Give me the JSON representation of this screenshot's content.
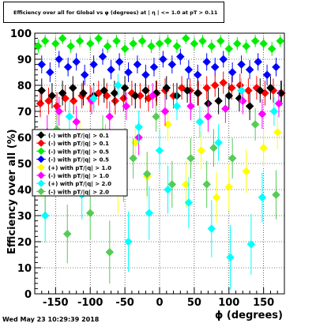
{
  "title": "Efficiency over all for Global vs φ (degrees) at | η | <= 1.0 at pT > 0.11",
  "timestamp": "Wed May 23 10:29:39 2018",
  "chart_data": {
    "type": "scatter",
    "xlabel": "ϕ (degrees)",
    "ylabel": "Efficiency over all (%)",
    "xlim": [
      -180,
      180
    ],
    "ylim": [
      0,
      100
    ],
    "xticks": [
      -150,
      -100,
      -50,
      0,
      50,
      100,
      150
    ],
    "yticks": [
      0,
      10,
      20,
      30,
      40,
      50,
      60,
      70,
      80,
      90,
      100
    ],
    "grid": true,
    "legend_position": "center-left",
    "series": [
      {
        "name": "(-) with pT/|q| > 0.1",
        "color": "#000000",
        "marker": "diamond",
        "points": [
          [
            -170,
            78
          ],
          [
            -155,
            76
          ],
          [
            -140,
            77
          ],
          [
            -125,
            79
          ],
          [
            -110,
            77
          ],
          [
            -95,
            76
          ],
          [
            -80,
            78
          ],
          [
            -65,
            77
          ],
          [
            -50,
            79
          ],
          [
            -35,
            76
          ],
          [
            -20,
            78
          ],
          [
            -5,
            77
          ],
          [
            10,
            79
          ],
          [
            25,
            76
          ],
          [
            40,
            78
          ],
          [
            55,
            77
          ],
          [
            70,
            73
          ],
          [
            85,
            74
          ],
          [
            100,
            76
          ],
          [
            115,
            75
          ],
          [
            130,
            72
          ],
          [
            145,
            78
          ],
          [
            160,
            79
          ],
          [
            175,
            77
          ]
        ]
      },
      {
        "name": "(-) with pT/|q| > 0.1",
        "color": "#ff0000",
        "marker": "diamond",
        "points": [
          [
            -172,
            73
          ],
          [
            -160,
            74
          ],
          [
            -148,
            72
          ],
          [
            -136,
            75
          ],
          [
            -124,
            74
          ],
          [
            -112,
            76
          ],
          [
            -100,
            75
          ],
          [
            -88,
            77
          ],
          [
            -76,
            76
          ],
          [
            -64,
            74
          ],
          [
            -52,
            75
          ],
          [
            -40,
            77
          ],
          [
            -28,
            76
          ],
          [
            -16,
            75
          ],
          [
            -4,
            77
          ],
          [
            8,
            78
          ],
          [
            20,
            76
          ],
          [
            32,
            79
          ],
          [
            44,
            78
          ],
          [
            56,
            77
          ],
          [
            68,
            79
          ],
          [
            80,
            80
          ],
          [
            92,
            81
          ],
          [
            104,
            79
          ],
          [
            116,
            80
          ],
          [
            128,
            78
          ],
          [
            140,
            79
          ],
          [
            152,
            77
          ],
          [
            164,
            78
          ],
          [
            176,
            77
          ]
        ]
      },
      {
        "name": "(-) with pT/|q| > 0.5",
        "color": "#00ee00",
        "marker": "diamond",
        "points": [
          [
            -175,
            95
          ],
          [
            -165,
            97
          ],
          [
            -150,
            96
          ],
          [
            -140,
            98
          ],
          [
            -128,
            95
          ],
          [
            -115,
            97
          ],
          [
            -100,
            96
          ],
          [
            -88,
            98
          ],
          [
            -75,
            95
          ],
          [
            -62,
            97
          ],
          [
            -50,
            94
          ],
          [
            -38,
            96
          ],
          [
            -25,
            97
          ],
          [
            -12,
            95
          ],
          [
            0,
            96
          ],
          [
            12,
            97
          ],
          [
            25,
            95
          ],
          [
            38,
            98
          ],
          [
            50,
            96
          ],
          [
            62,
            97
          ],
          [
            75,
            95
          ],
          [
            88,
            97
          ],
          [
            100,
            94
          ],
          [
            112,
            96
          ],
          [
            125,
            95
          ],
          [
            138,
            97
          ],
          [
            150,
            96
          ],
          [
            162,
            94
          ],
          [
            174,
            97
          ]
        ]
      },
      {
        "name": "(-) with pT/|q| > 0.5",
        "color": "#0000ff",
        "marker": "diamond",
        "points": [
          [
            -170,
            88
          ],
          [
            -158,
            85
          ],
          [
            -145,
            90
          ],
          [
            -132,
            87
          ],
          [
            -120,
            89
          ],
          [
            -108,
            84
          ],
          [
            -95,
            88
          ],
          [
            -82,
            91
          ],
          [
            -70,
            86
          ],
          [
            -58,
            89
          ],
          [
            -45,
            85
          ],
          [
            -32,
            88
          ],
          [
            -20,
            84
          ],
          [
            -8,
            87
          ],
          [
            5,
            90
          ],
          [
            18,
            88
          ],
          [
            30,
            91
          ],
          [
            42,
            86
          ],
          [
            55,
            84
          ],
          [
            68,
            89
          ],
          [
            80,
            87
          ],
          [
            92,
            90
          ],
          [
            105,
            85
          ],
          [
            118,
            88
          ],
          [
            130,
            86
          ],
          [
            142,
            89
          ],
          [
            155,
            84
          ],
          [
            168,
            87
          ]
        ]
      },
      {
        "name": "(+) with pT/|q| > 1.0",
        "color": "#ffff00",
        "marker": "diamond",
        "points": [
          [
            -168,
            45
          ],
          [
            -140,
            52
          ],
          [
            -115,
            60
          ],
          [
            -90,
            48
          ],
          [
            -60,
            40
          ],
          [
            -35,
            58
          ],
          [
            -18,
            45
          ],
          [
            12,
            65
          ],
          [
            38,
            42
          ],
          [
            60,
            55
          ],
          [
            82,
            37
          ],
          [
            100,
            41
          ],
          [
            125,
            47
          ],
          [
            150,
            56
          ],
          [
            170,
            62
          ]
        ]
      },
      {
        "name": "(-) with pT/|q| > 1.0",
        "color": "#ff00ff",
        "marker": "diamond",
        "points": [
          [
            -162,
            62
          ],
          [
            -145,
            70
          ],
          [
            -120,
            66
          ],
          [
            -98,
            74
          ],
          [
            -72,
            68
          ],
          [
            -48,
            72
          ],
          [
            -30,
            60
          ],
          [
            -10,
            76
          ],
          [
            8,
            70
          ],
          [
            45,
            72
          ],
          [
            70,
            68
          ],
          [
            95,
            71
          ],
          [
            120,
            74
          ],
          [
            148,
            69
          ],
          [
            172,
            73
          ]
        ]
      },
      {
        "name": "(+) with pT/|q| > 2.0",
        "color": "#00ffff",
        "marker": "diamond",
        "points": [
          [
            -165,
            30
          ],
          [
            -150,
            52
          ],
          [
            -130,
            68
          ],
          [
            -112,
            38
          ],
          [
            -95,
            75
          ],
          [
            -78,
            58
          ],
          [
            -60,
            80
          ],
          [
            -45,
            20
          ],
          [
            -30,
            64
          ],
          [
            -15,
            31
          ],
          [
            0,
            55
          ],
          [
            12,
            40
          ],
          [
            25,
            72
          ],
          [
            42,
            35
          ],
          [
            58,
            66
          ],
          [
            75,
            25
          ],
          [
            85,
            58
          ],
          [
            102,
            14
          ],
          [
            118,
            78
          ],
          [
            132,
            19
          ],
          [
            148,
            37
          ],
          [
            165,
            70
          ]
        ]
      },
      {
        "name": "(-) with pT/|q| > 2.0",
        "color": "#55cc55",
        "marker": "diamond",
        "points": [
          [
            -165,
            40
          ],
          [
            -148,
            63
          ],
          [
            -133,
            23
          ],
          [
            -115,
            55
          ],
          [
            -100,
            31
          ],
          [
            -82,
            62
          ],
          [
            -72,
            16
          ],
          [
            -52,
            44
          ],
          [
            -38,
            52
          ],
          [
            -18,
            46
          ],
          [
            -5,
            68
          ],
          [
            18,
            42
          ],
          [
            45,
            52
          ],
          [
            68,
            42
          ],
          [
            78,
            56
          ],
          [
            105,
            52
          ],
          [
            138,
            65
          ],
          [
            168,
            38
          ]
        ]
      }
    ]
  }
}
